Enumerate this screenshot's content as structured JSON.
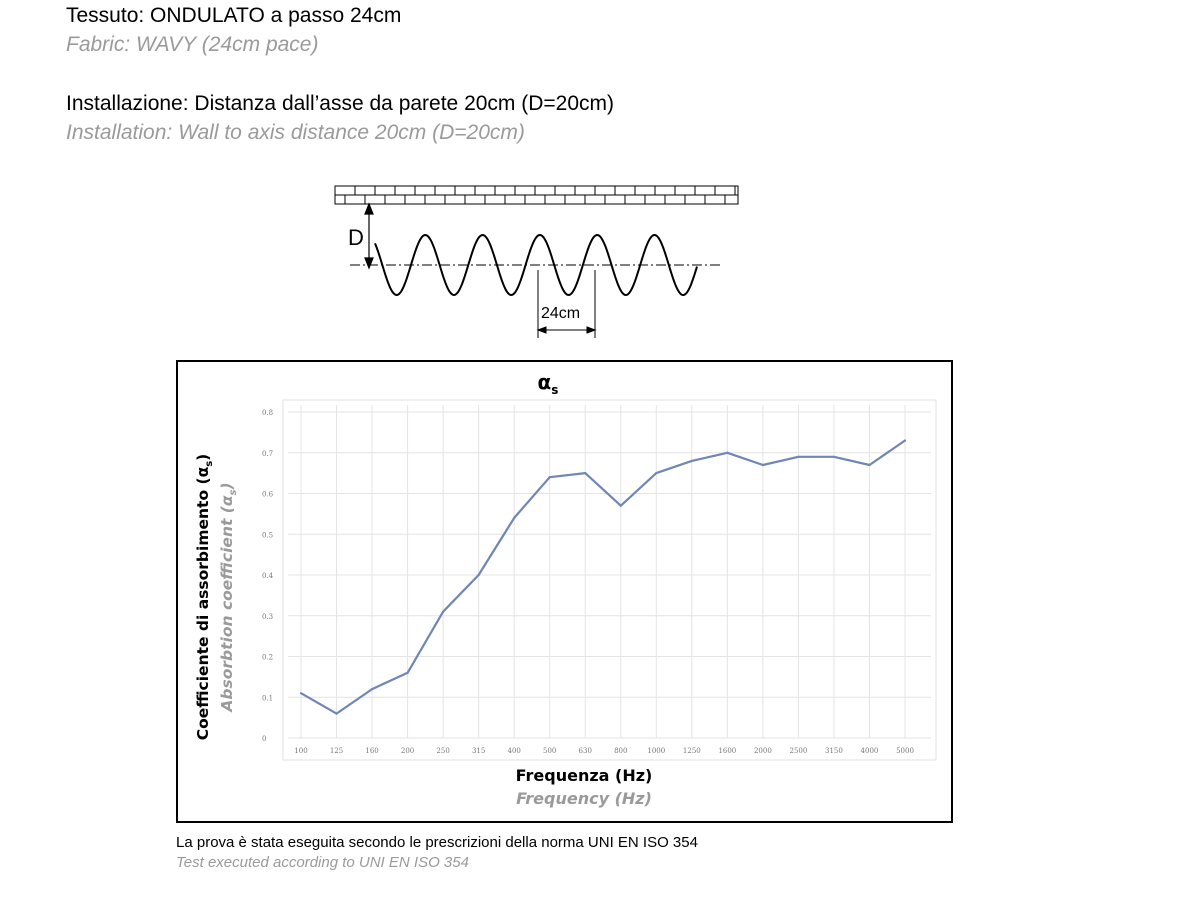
{
  "header": {
    "fabric_it": "Tessuto: ONDULATO a passo 24cm",
    "fabric_en": "Fabric: WAVY (24cm pace)",
    "install_it": "Installazione: Distanza dall’asse da parete 20cm (D=20cm)",
    "install_en": "Installation: Wall to axis distance 20cm (D=20cm)"
  },
  "diagram": {
    "d_label": "D",
    "pitch_label": "24cm"
  },
  "chart_data": {
    "type": "line",
    "title": "α",
    "title_subscript": "s",
    "ylabel_it": "Coefficiente di assorbimento (α",
    "ylabel_en": "Absorbtion coefficient (α",
    "ylabel_subscript": "s",
    "ylabel_close": ")",
    "xlabel_it": "Frequenza (Hz)",
    "xlabel_en": "Frequency (Hz)",
    "categories": [
      "100",
      "125",
      "160",
      "200",
      "250",
      "315",
      "400",
      "500",
      "630",
      "800",
      "1000",
      "1250",
      "1600",
      "2000",
      "2500",
      "3150",
      "4000",
      "5000"
    ],
    "series": [
      {
        "values": [
          0.11,
          0.06,
          0.12,
          0.16,
          0.31,
          0.4,
          0.54,
          0.64,
          0.65,
          0.57,
          0.65,
          0.68,
          0.7,
          0.67,
          0.69,
          0.69,
          0.67,
          0.73
        ],
        "color": "#6f86b6"
      }
    ],
    "yticks": [
      "0",
      "0.1",
      "0.2",
      "0.3",
      "0.4",
      "0.5",
      "0.6",
      "0.7",
      "0.8"
    ],
    "ylim": [
      0,
      0.8
    ],
    "grid": true
  },
  "footer": {
    "note_it": "La prova è stata eseguita secondo le prescrizioni della norma UNI EN ISO 354",
    "note_en": "Test executed according  to UNI EN ISO 354"
  }
}
